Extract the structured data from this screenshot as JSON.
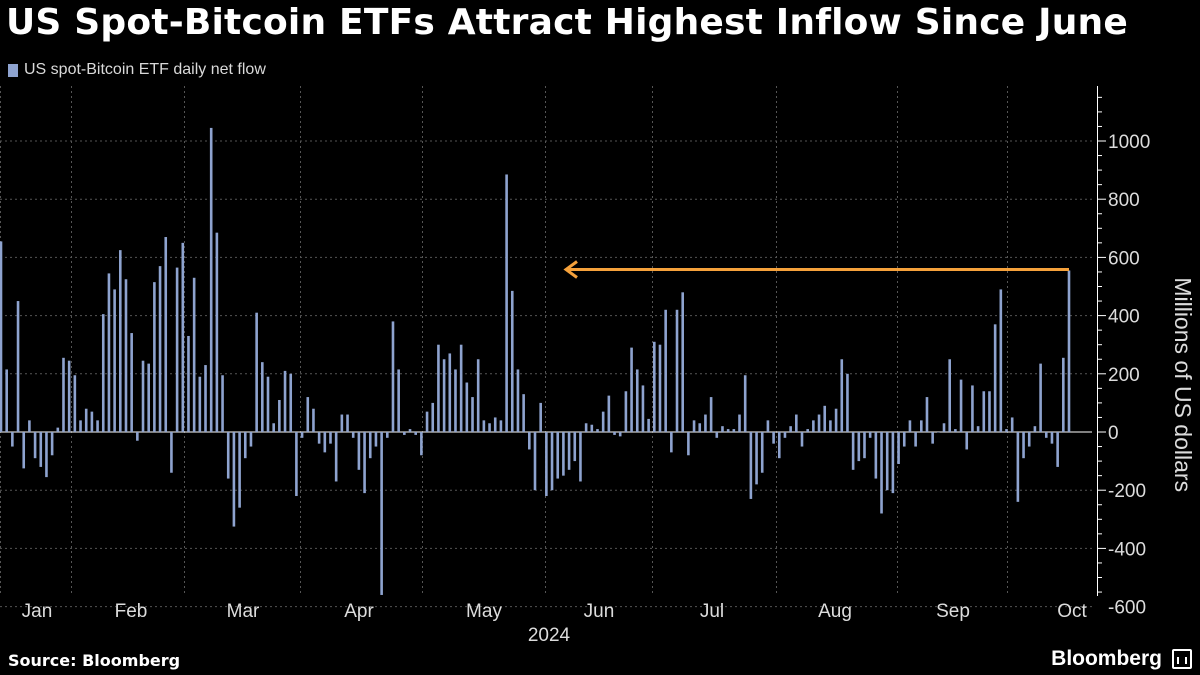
{
  "title": "US Spot-Bitcoin ETFs Attract Highest Inflow Since June",
  "legend": {
    "label": "US spot-Bitcoin ETF daily net flow",
    "color": "#8ea3cf"
  },
  "source": "Source: Bloomberg",
  "brand": "Bloomberg",
  "colors": {
    "bar": "#8ea3cf",
    "grid": "#555555",
    "axis": "#ffffff",
    "arrow": "#f5a13b",
    "text": "#dcdcdc"
  },
  "chart_data": {
    "type": "bar",
    "series": [
      {
        "name": "US spot-Bitcoin ETF daily net flow",
        "values": [
          655,
          215,
          -50,
          450,
          -125,
          40,
          -90,
          -120,
          -155,
          -80,
          15,
          255,
          245,
          195,
          40,
          80,
          70,
          40,
          405,
          545,
          490,
          625,
          525,
          340,
          -30,
          245,
          235,
          515,
          570,
          670,
          -140,
          565,
          650,
          330,
          530,
          190,
          230,
          1045,
          685,
          195,
          -160,
          -325,
          -260,
          -90,
          -50,
          410,
          240,
          190,
          30,
          110,
          210,
          200,
          -220,
          -20,
          120,
          80,
          -40,
          -70,
          -40,
          -170,
          60,
          60,
          -20,
          -130,
          -210,
          -90,
          -50,
          -560,
          -20,
          380,
          215,
          -10,
          10,
          -10,
          -80,
          70,
          100,
          300,
          250,
          270,
          215,
          300,
          170,
          120,
          250,
          40,
          30,
          50,
          40,
          885,
          485,
          215,
          130,
          -60,
          -200,
          100,
          -220,
          -200,
          -160,
          -150,
          -130,
          -100,
          -170,
          30,
          25,
          10,
          70,
          125,
          -10,
          -15,
          140,
          290,
          215,
          160,
          45,
          310,
          300,
          420,
          -70,
          420,
          480,
          -80,
          40,
          30,
          60,
          120,
          -20,
          20,
          10,
          10,
          60,
          195,
          -230,
          -180,
          -140,
          40,
          -40,
          -90,
          -20,
          20,
          60,
          -50,
          10,
          40,
          60,
          90,
          40,
          80,
          250,
          200,
          -130,
          -100,
          -90,
          -20,
          -160,
          -280,
          -200,
          -210,
          -110,
          -50,
          40,
          -50,
          40,
          120,
          -40,
          0,
          30,
          250,
          10,
          180,
          -60,
          160,
          20,
          140,
          140,
          370,
          490,
          10,
          50,
          -240,
          -90,
          -50,
          20,
          235,
          -20,
          -40,
          -120,
          255,
          555
        ]
      }
    ],
    "x_labels": [
      "Jan",
      "Feb",
      "Mar",
      "Apr",
      "May",
      "Jun",
      "Jul",
      "Aug",
      "Sep",
      "Oct"
    ],
    "x_year": "2024",
    "ylabel": "Millions of US dollars",
    "yticks": [
      -600,
      -400,
      -200,
      0,
      200,
      400,
      600,
      800,
      1000
    ],
    "ylim": [
      -700,
      1170
    ],
    "annotation": {
      "type": "arrow",
      "value": 555,
      "from": "last",
      "to_near": "Jun"
    },
    "grid": true,
    "legend_position": "top-left"
  }
}
